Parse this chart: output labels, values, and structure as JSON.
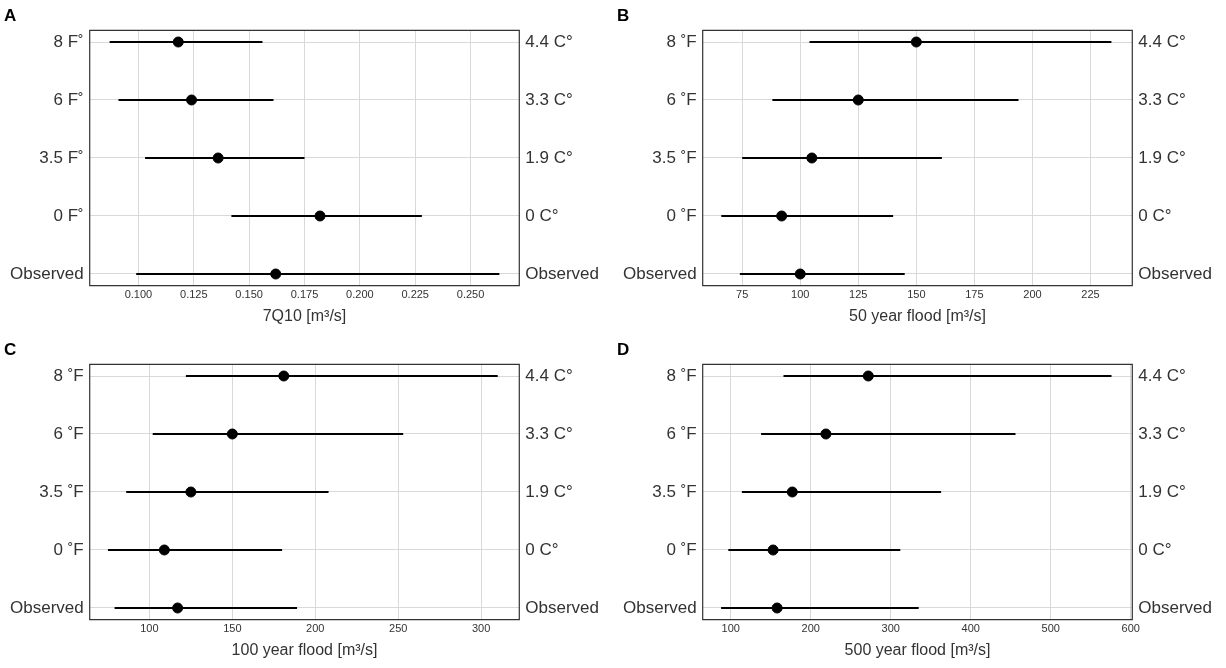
{
  "chart_data": [
    {
      "type": "scatter",
      "orientation": "horizontal",
      "title": "A",
      "xlabel": "7Q10 [m³/s]",
      "categories": [
        "8 F˚",
        "6 F˚",
        "3.5 F˚",
        "0 F˚",
        "Observed"
      ],
      "y2_categories": [
        "4.4 C°",
        "3.3 C°",
        "1.9 C°",
        "0 C°",
        "Observed"
      ],
      "series": [
        {
          "color": "#000000",
          "values": [
            0.118,
            0.124,
            0.136,
            0.182,
            0.162
          ],
          "errors": [
            [
              0.087,
              0.156
            ],
            [
              0.091,
              0.161
            ],
            [
              0.103,
              0.175
            ],
            [
              0.142,
              0.228
            ],
            [
              0.099,
              0.263
            ]
          ]
        }
      ],
      "xlim": [
        0.078,
        0.272
      ],
      "xticks": [
        {
          "value": 0.1,
          "label": "0.100"
        },
        0.125,
        {
          "value": 0.15,
          "label": "0.150"
        },
        0.175,
        {
          "value": 0.2,
          "label": "0.200"
        },
        0.225,
        {
          "value": 0.25,
          "label": "0.250"
        }
      ],
      "grid": true,
      "marker": "circle"
    },
    {
      "type": "scatter",
      "orientation": "horizontal",
      "title": "B",
      "xlabel": "50 year flood [m³/s]",
      "categories": [
        "8 ˚F",
        "6 ˚F",
        "3.5 ˚F",
        "0 ˚F",
        "Observed"
      ],
      "y2_categories": [
        "4.4 C°",
        "3.3 C°",
        "1.9 C°",
        "0 C°",
        "Observed"
      ],
      "series": [
        {
          "color": "#000000",
          "values": [
            150,
            125,
            105,
            92,
            100
          ],
          "errors": [
            [
              104,
              234
            ],
            [
              88,
              194
            ],
            [
              75,
              161
            ],
            [
              66,
              140
            ],
            [
              74,
              145
            ]
          ]
        }
      ],
      "xlim": [
        58,
        243
      ],
      "xticks": [
        75,
        100,
        125,
        150,
        175,
        200,
        225
      ],
      "grid": true,
      "marker": "circle"
    },
    {
      "type": "scatter",
      "orientation": "horizontal",
      "title": "C",
      "xlabel": "100 year flood [m³/s]",
      "categories": [
        "8 ˚F",
        "6 ˚F",
        "3.5 ˚F",
        "0 ˚F",
        "Observed"
      ],
      "y2_categories": [
        "4.4 C°",
        "3.3 C°",
        "1.9 C°",
        "0 C°",
        "Observed"
      ],
      "series": [
        {
          "color": "#000000",
          "values": [
            181,
            150,
            125,
            109,
            117
          ],
          "errors": [
            [
              122,
              310
            ],
            [
              102,
              253
            ],
            [
              86,
              208
            ],
            [
              75,
              180
            ],
            [
              79,
              189
            ]
          ]
        }
      ],
      "xlim": [
        64,
        323
      ],
      "xticks": [
        100,
        150,
        200,
        250,
        300
      ],
      "grid": true,
      "marker": "circle"
    },
    {
      "type": "scatter",
      "orientation": "horizontal",
      "title": "D",
      "xlabel": "500 year flood [m³/s]",
      "categories": [
        "8 ˚F",
        "6 ˚F",
        "3.5 ˚F",
        "0 ˚F",
        "Observed"
      ],
      "y2_categories": [
        "4.4 C°",
        "3.3 C°",
        "1.9 C°",
        "0 C°",
        "Observed"
      ],
      "series": [
        {
          "color": "#000000",
          "values": [
            272,
            219,
            177,
            153,
            158
          ],
          "errors": [
            [
              166,
              576
            ],
            [
              138,
              456
            ],
            [
              114,
              363
            ],
            [
              97,
              312
            ],
            [
              88,
              335
            ]
          ]
        }
      ],
      "xlim": [
        65,
        602
      ],
      "xticks": [
        100,
        200,
        300,
        400,
        500,
        600
      ],
      "grid": true,
      "marker": "circle"
    }
  ]
}
